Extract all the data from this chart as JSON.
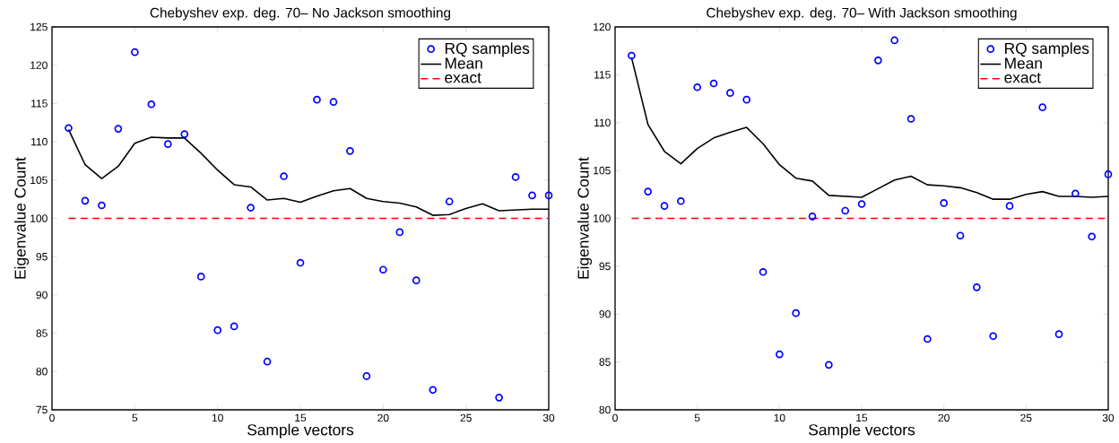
{
  "chart_data": [
    {
      "type": "scatter",
      "title": "Chebyshev exp. deg. 70– No Jackson smoothing",
      "xlabel": "Sample vectors",
      "ylabel": "Eigenvalue  Count",
      "xlim": [
        0,
        30
      ],
      "ylim": [
        75,
        125
      ],
      "xticks": [
        0,
        5,
        10,
        15,
        20,
        25,
        30
      ],
      "yticks": [
        75,
        80,
        85,
        90,
        95,
        100,
        105,
        110,
        115,
        120,
        125
      ],
      "legend": "top right",
      "x": [
        1,
        2,
        3,
        4,
        5,
        6,
        7,
        8,
        9,
        10,
        11,
        12,
        13,
        14,
        15,
        16,
        17,
        18,
        19,
        20,
        21,
        22,
        23,
        24,
        25,
        26,
        27,
        28,
        29,
        30
      ],
      "series": [
        {
          "name": "RQ samples",
          "type": "scatter",
          "marker": "circle",
          "color": "#0000ff",
          "values": [
            111.8,
            102.3,
            101.7,
            111.7,
            121.7,
            114.9,
            109.7,
            111.0,
            92.4,
            85.4,
            85.9,
            101.4,
            81.3,
            105.5,
            94.2,
            115.5,
            115.2,
            108.8,
            79.4,
            93.3,
            98.2,
            91.9,
            77.6,
            102.2,
            null,
            null,
            76.6,
            105.4,
            103.0,
            103.0
          ]
        },
        {
          "name": "Mean",
          "type": "line",
          "color": "#000000",
          "line_style": "solid",
          "values": [
            111.6,
            107.0,
            105.2,
            106.8,
            109.8,
            110.6,
            110.5,
            110.5,
            108.5,
            106.3,
            104.4,
            104.1,
            102.4,
            102.6,
            102.1,
            102.9,
            103.6,
            103.9,
            102.6,
            102.2,
            102.0,
            101.5,
            100.4,
            100.5,
            101.3,
            101.9,
            101.0,
            101.1,
            101.2,
            101.2
          ]
        },
        {
          "name": "exact",
          "type": "line",
          "color": "#ff0000",
          "line_style": "dashed",
          "values": [
            100,
            100,
            100,
            100,
            100,
            100,
            100,
            100,
            100,
            100,
            100,
            100,
            100,
            100,
            100,
            100,
            100,
            100,
            100,
            100,
            100,
            100,
            100,
            100,
            100,
            100,
            100,
            100,
            100,
            100
          ]
        }
      ]
    },
    {
      "type": "scatter",
      "title": "Chebyshev exp. deg. 70– With Jackson smoothing",
      "xlabel": "Sample vectors",
      "ylabel": "Eigenvalue  Count",
      "xlim": [
        0,
        30
      ],
      "ylim": [
        80,
        120
      ],
      "xticks": [
        0,
        5,
        10,
        15,
        20,
        25,
        30
      ],
      "yticks": [
        80,
        85,
        90,
        95,
        100,
        105,
        110,
        115,
        120
      ],
      "legend": "top right",
      "x": [
        1,
        2,
        3,
        4,
        5,
        6,
        7,
        8,
        9,
        10,
        11,
        12,
        13,
        14,
        15,
        16,
        17,
        18,
        19,
        20,
        21,
        22,
        23,
        24,
        25,
        26,
        27,
        28,
        29,
        30
      ],
      "series": [
        {
          "name": "RQ samples",
          "type": "scatter",
          "marker": "circle",
          "color": "#0000ff",
          "values": [
            117.0,
            102.8,
            101.3,
            101.8,
            113.7,
            114.1,
            113.1,
            112.4,
            94.4,
            85.8,
            90.1,
            100.2,
            84.7,
            100.8,
            101.5,
            116.5,
            118.6,
            110.4,
            87.4,
            101.6,
            98.2,
            92.8,
            87.7,
            101.3,
            null,
            111.6,
            87.9,
            102.6,
            98.1,
            104.6
          ]
        },
        {
          "name": "Mean",
          "type": "line",
          "color": "#000000",
          "line_style": "solid",
          "values": [
            116.8,
            109.8,
            107.0,
            105.7,
            107.3,
            108.4,
            109.0,
            109.5,
            107.8,
            105.6,
            104.2,
            103.9,
            102.4,
            102.3,
            102.2,
            103.1,
            104.0,
            104.4,
            103.5,
            103.4,
            103.2,
            102.7,
            102.0,
            102.0,
            102.5,
            102.8,
            102.3,
            102.3,
            102.2,
            102.3
          ]
        },
        {
          "name": "exact",
          "type": "line",
          "color": "#ff0000",
          "line_style": "dashed",
          "values": [
            100,
            100,
            100,
            100,
            100,
            100,
            100,
            100,
            100,
            100,
            100,
            100,
            100,
            100,
            100,
            100,
            100,
            100,
            100,
            100,
            100,
            100,
            100,
            100,
            100,
            100,
            100,
            100,
            100,
            100
          ]
        }
      ]
    }
  ]
}
